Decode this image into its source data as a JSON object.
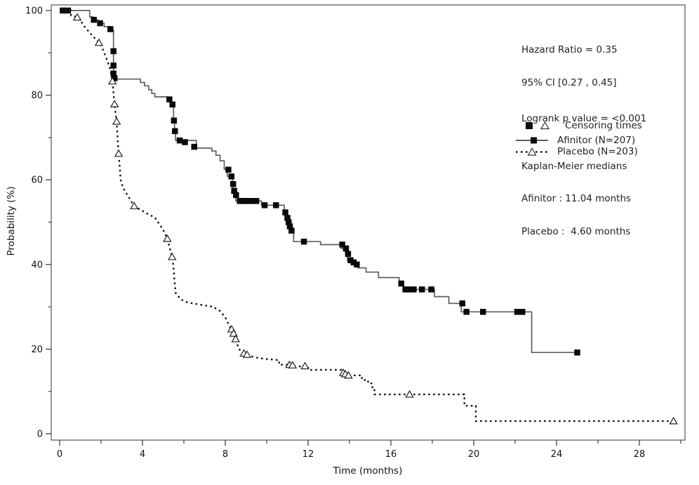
{
  "chart_data": {
    "type": "line",
    "subtype": "kaplan-meier-step",
    "title": "",
    "xlabel": "Time (months)",
    "ylabel": "Probability (%)",
    "xlim": [
      0,
      30.5
    ],
    "ylim": [
      0,
      100
    ],
    "x_major_ticks": [
      0,
      4,
      8,
      12,
      16,
      20,
      24,
      28
    ],
    "x_minor_ticks": [
      2,
      6,
      10,
      14,
      18,
      22,
      26,
      30
    ],
    "y_major_ticks": [
      0,
      20,
      40,
      60,
      80,
      100
    ],
    "y_minor_ticks": [
      10,
      30,
      50,
      70,
      90
    ],
    "grid": false,
    "legend_position": "upper-right",
    "series": [
      {
        "name": "Afinitor (N=207)",
        "line_style": "solid",
        "color": "#5f5f5f",
        "marker": "filled-square",
        "marker_color": "#0a0a0a",
        "median_months": 11.04,
        "steps": [
          [
            0,
            100
          ],
          [
            1.45,
            100
          ],
          [
            1.45,
            98.5
          ],
          [
            1.6,
            98.5
          ],
          [
            1.6,
            97.8
          ],
          [
            1.85,
            97.8
          ],
          [
            1.85,
            97
          ],
          [
            2.15,
            97
          ],
          [
            2.15,
            96.2
          ],
          [
            2.45,
            96.2
          ],
          [
            2.45,
            95.4
          ],
          [
            2.6,
            95.4
          ],
          [
            2.6,
            83.8
          ],
          [
            3.9,
            83.8
          ],
          [
            3.9,
            83
          ],
          [
            4.1,
            83
          ],
          [
            4.1,
            82.2
          ],
          [
            4.3,
            82.2
          ],
          [
            4.3,
            81.3
          ],
          [
            4.45,
            81.3
          ],
          [
            4.45,
            80.4
          ],
          [
            4.6,
            80.4
          ],
          [
            4.6,
            79.6
          ],
          [
            5.2,
            79.6
          ],
          [
            5.2,
            79
          ],
          [
            5.35,
            79
          ],
          [
            5.35,
            77.8
          ],
          [
            5.5,
            77.8
          ],
          [
            5.5,
            73.8
          ],
          [
            5.55,
            73.8
          ],
          [
            5.55,
            71.5
          ],
          [
            5.6,
            71.5
          ],
          [
            5.6,
            69.3
          ],
          [
            6.6,
            69.3
          ],
          [
            6.6,
            67.5
          ],
          [
            7.35,
            67.5
          ],
          [
            7.35,
            66.8
          ],
          [
            7.55,
            66.8
          ],
          [
            7.55,
            65.8
          ],
          [
            7.75,
            65.8
          ],
          [
            7.75,
            64.5
          ],
          [
            7.95,
            64.5
          ],
          [
            7.95,
            62.5
          ],
          [
            8.1,
            62.5
          ],
          [
            8.1,
            60.8
          ],
          [
            8.35,
            60.8
          ],
          [
            8.35,
            57
          ],
          [
            8.5,
            57
          ],
          [
            8.5,
            55
          ],
          [
            9.75,
            55
          ],
          [
            9.75,
            54
          ],
          [
            10.85,
            54
          ],
          [
            10.85,
            52.5
          ],
          [
            10.95,
            52.5
          ],
          [
            10.95,
            51.3
          ],
          [
            11.05,
            51.3
          ],
          [
            11.05,
            50
          ],
          [
            11.12,
            50
          ],
          [
            11.12,
            48.8
          ],
          [
            11.2,
            48.8
          ],
          [
            11.2,
            47.6
          ],
          [
            11.3,
            47.6
          ],
          [
            11.3,
            45.4
          ],
          [
            12.6,
            45.4
          ],
          [
            12.6,
            44.7
          ],
          [
            13.6,
            44.7
          ],
          [
            13.6,
            43.8
          ],
          [
            13.8,
            43.8
          ],
          [
            13.8,
            42.9
          ],
          [
            13.9,
            42.9
          ],
          [
            13.9,
            41
          ],
          [
            14.1,
            41
          ],
          [
            14.1,
            40
          ],
          [
            14.4,
            40
          ],
          [
            14.4,
            39.2
          ],
          [
            14.8,
            39.2
          ],
          [
            14.8,
            38.2
          ],
          [
            15.4,
            38.2
          ],
          [
            15.4,
            36.9
          ],
          [
            16.4,
            36.9
          ],
          [
            16.4,
            35.5
          ],
          [
            16.6,
            35.5
          ],
          [
            16.6,
            34.1
          ],
          [
            18.1,
            34.1
          ],
          [
            18.1,
            32.4
          ],
          [
            18.8,
            32.4
          ],
          [
            18.8,
            30.8
          ],
          [
            19.4,
            30.8
          ],
          [
            19.4,
            28.8
          ],
          [
            22.8,
            28.8
          ],
          [
            22.8,
            19.2
          ],
          [
            25.0,
            19.2
          ]
        ],
        "censoring_times": [
          [
            0.15,
            100
          ],
          [
            0.4,
            100
          ],
          [
            1.65,
            97.8
          ],
          [
            1.95,
            97
          ],
          [
            2.45,
            95.6
          ],
          [
            2.6,
            90.4
          ],
          [
            2.6,
            87
          ],
          [
            2.6,
            85.1
          ],
          [
            2.65,
            84
          ],
          [
            5.3,
            79
          ],
          [
            5.45,
            77.8
          ],
          [
            5.52,
            74
          ],
          [
            5.57,
            71.5
          ],
          [
            5.8,
            69.3
          ],
          [
            6.05,
            68.9
          ],
          [
            6.5,
            67.8
          ],
          [
            8.15,
            62.4
          ],
          [
            8.3,
            60.8
          ],
          [
            8.38,
            59
          ],
          [
            8.43,
            57.4
          ],
          [
            8.52,
            56.4
          ],
          [
            8.7,
            55
          ],
          [
            8.85,
            55
          ],
          [
            9.0,
            55
          ],
          [
            9.15,
            55
          ],
          [
            9.3,
            55
          ],
          [
            9.5,
            55
          ],
          [
            9.9,
            54
          ],
          [
            10.45,
            54
          ],
          [
            10.9,
            52.3
          ],
          [
            11.0,
            51
          ],
          [
            11.06,
            50
          ],
          [
            11.12,
            49
          ],
          [
            11.2,
            48
          ],
          [
            11.8,
            45.4
          ],
          [
            13.65,
            44.7
          ],
          [
            13.83,
            43.8
          ],
          [
            13.93,
            42.5
          ],
          [
            14.05,
            41
          ],
          [
            14.2,
            40.5
          ],
          [
            14.35,
            40
          ],
          [
            16.5,
            35.5
          ],
          [
            16.7,
            34.1
          ],
          [
            16.9,
            34.1
          ],
          [
            17.1,
            34.1
          ],
          [
            17.5,
            34.1
          ],
          [
            17.95,
            34.1
          ],
          [
            19.45,
            30.8
          ],
          [
            19.65,
            28.8
          ],
          [
            20.45,
            28.8
          ],
          [
            22.1,
            28.8
          ],
          [
            22.35,
            28.8
          ],
          [
            25.0,
            19.2
          ]
        ]
      },
      {
        "name": "Placebo (N=203)",
        "line_style": "dotted",
        "color": "#151515",
        "marker": "open-triangle",
        "marker_color": "#222222",
        "median_months": 4.6,
        "steps": [
          [
            0,
            100
          ],
          [
            0.55,
            100
          ],
          [
            0.55,
            98.8
          ],
          [
            0.9,
            98.4
          ],
          [
            1.2,
            96.2
          ],
          [
            1.5,
            94.5
          ],
          [
            1.9,
            92.4
          ],
          [
            2.1,
            90.7
          ],
          [
            2.3,
            88.2
          ],
          [
            2.45,
            86
          ],
          [
            2.55,
            83.3
          ],
          [
            2.65,
            77.9
          ],
          [
            2.75,
            73.8
          ],
          [
            2.85,
            66
          ],
          [
            2.95,
            60
          ],
          [
            3.05,
            58.2
          ],
          [
            3.3,
            56.2
          ],
          [
            3.6,
            53.8
          ],
          [
            4.3,
            51.8
          ],
          [
            4.6,
            51.1
          ],
          [
            5.0,
            48.2
          ],
          [
            5.2,
            46.1
          ],
          [
            5.35,
            43.3
          ],
          [
            5.45,
            41.5
          ],
          [
            5.5,
            39
          ],
          [
            5.55,
            36
          ],
          [
            5.6,
            33.3
          ],
          [
            5.85,
            31.7
          ],
          [
            6.2,
            31
          ],
          [
            6.8,
            30.5
          ],
          [
            7.4,
            30
          ],
          [
            7.75,
            29
          ],
          [
            8.0,
            27.5
          ],
          [
            8.15,
            26
          ],
          [
            8.3,
            24.5
          ],
          [
            8.45,
            22.9
          ],
          [
            8.55,
            21.6
          ],
          [
            8.65,
            20.1
          ],
          [
            8.8,
            19.3
          ],
          [
            9.1,
            18.5
          ],
          [
            9.5,
            18
          ],
          [
            9.9,
            17.7
          ],
          [
            10.6,
            17.4
          ],
          [
            10.6,
            16.3
          ],
          [
            11.1,
            16.3
          ],
          [
            11.1,
            15.9
          ],
          [
            12.0,
            15.9
          ],
          [
            12.0,
            15.1
          ],
          [
            13.6,
            15.1
          ],
          [
            13.6,
            14.3
          ],
          [
            13.9,
            14.3
          ],
          [
            13.9,
            13.8
          ],
          [
            14.6,
            13.8
          ],
          [
            14.6,
            12.7
          ],
          [
            14.9,
            12.7
          ],
          [
            14.9,
            11.9
          ],
          [
            15.1,
            11.9
          ],
          [
            15.1,
            11
          ],
          [
            15.2,
            11
          ],
          [
            15.2,
            9.3
          ],
          [
            19.55,
            9.3
          ],
          [
            19.55,
            6.6
          ],
          [
            20.1,
            6.6
          ],
          [
            20.1,
            3
          ],
          [
            29.7,
            3
          ]
        ],
        "censoring_times": [
          [
            0.85,
            98.4
          ],
          [
            1.9,
            92.4
          ],
          [
            2.55,
            83.3
          ],
          [
            2.65,
            77.9
          ],
          [
            2.75,
            73.8
          ],
          [
            2.85,
            66.2
          ],
          [
            3.6,
            53.8
          ],
          [
            5.2,
            46.1
          ],
          [
            5.43,
            41.8
          ],
          [
            8.3,
            24.7
          ],
          [
            8.4,
            23.7
          ],
          [
            8.5,
            22.4
          ],
          [
            8.9,
            19
          ],
          [
            9.05,
            18.7
          ],
          [
            11.1,
            16.3
          ],
          [
            11.25,
            16.2
          ],
          [
            11.85,
            16
          ],
          [
            13.7,
            14.4
          ],
          [
            13.8,
            14.1
          ],
          [
            13.95,
            13.8
          ],
          [
            16.9,
            9.3
          ],
          [
            29.65,
            3
          ]
        ]
      }
    ]
  },
  "annotations": {
    "hazard_ratio": "Hazard Ratio = 0.35",
    "ci": "95% CI [0.27 , 0.45]",
    "logrank": "Logrank p value = <0.001",
    "km_header": "Kaplan-Meier medians",
    "km_afinitor": "Afinitor : 11.04 months",
    "km_placebo": "Placebo :  4.60 months"
  },
  "legend": {
    "censoring_label": "Censoring times",
    "afinitor_label": "Afinitor (N=207)",
    "placebo_label": "Placebo (N=203)"
  }
}
